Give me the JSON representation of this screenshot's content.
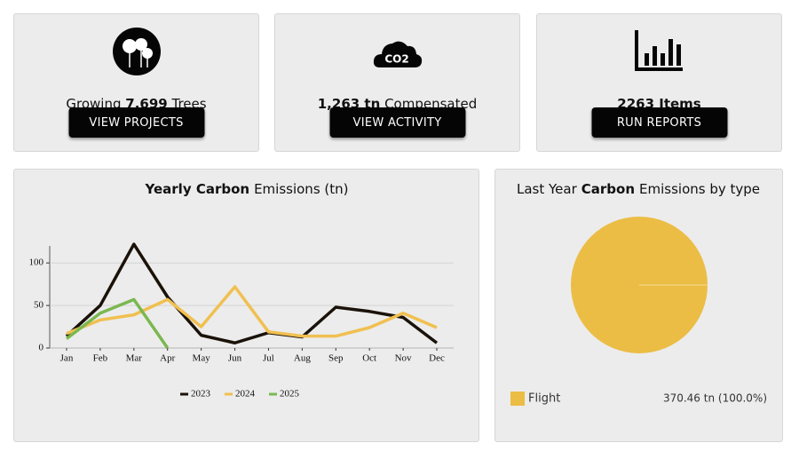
{
  "cards": [
    {
      "text": [
        {
          "text": "Growing"
        },
        {
          "text": "7,699",
          "bold": true
        },
        {
          "text": "Trees"
        }
      ],
      "button": "VIEW PROJECTS"
    },
    {
      "icon_label": "CO2",
      "text": [
        {
          "text": "1,263 tn",
          "bold": true
        },
        {
          "text": "Compensated"
        }
      ],
      "button": "VIEW ACTIVITY"
    },
    {
      "text": [
        {
          "text": "2263 Items",
          "bold": true
        }
      ],
      "button": "RUN REPORTS"
    }
  ],
  "chart_data": [
    {
      "type": "line",
      "title": [
        {
          "text": "Yearly Carbon",
          "bold": true
        },
        {
          "text": "Emissions (tn)"
        }
      ],
      "categories": [
        "Jan",
        "Feb",
        "Mar",
        "Apr",
        "May",
        "Jun",
        "Jul",
        "Aug",
        "Sep",
        "Oct",
        "Nov",
        "Dec"
      ],
      "series": [
        {
          "name": "2023",
          "color": "#1a1209",
          "values": [
            14,
            50,
            122,
            60,
            15,
            6,
            18,
            13,
            48,
            43,
            36,
            6
          ]
        },
        {
          "name": "2024",
          "color": "#f0c050",
          "values": [
            17,
            33,
            39,
            57,
            25,
            72,
            19,
            14,
            14,
            24,
            41,
            24
          ]
        },
        {
          "name": "2025",
          "color": "#7ab850",
          "values": [
            11,
            41,
            57,
            0,
            null,
            null,
            null,
            null,
            null,
            null,
            null,
            null
          ]
        }
      ],
      "ylim": [
        0,
        120
      ],
      "yticks": [
        0,
        50,
        100
      ],
      "grid": true,
      "legend": "bottom"
    },
    {
      "type": "pie",
      "title": [
        {
          "text": "Last Year"
        },
        {
          "text": "Carbon",
          "bold": true
        },
        {
          "text": "Emissions by type"
        }
      ],
      "categories": [
        "Flight"
      ],
      "values": [
        370.46
      ],
      "value_labels": [
        "370.46 tn (100.0%)"
      ],
      "colors": [
        "#ebbd45"
      ],
      "legend": "bottom"
    }
  ]
}
